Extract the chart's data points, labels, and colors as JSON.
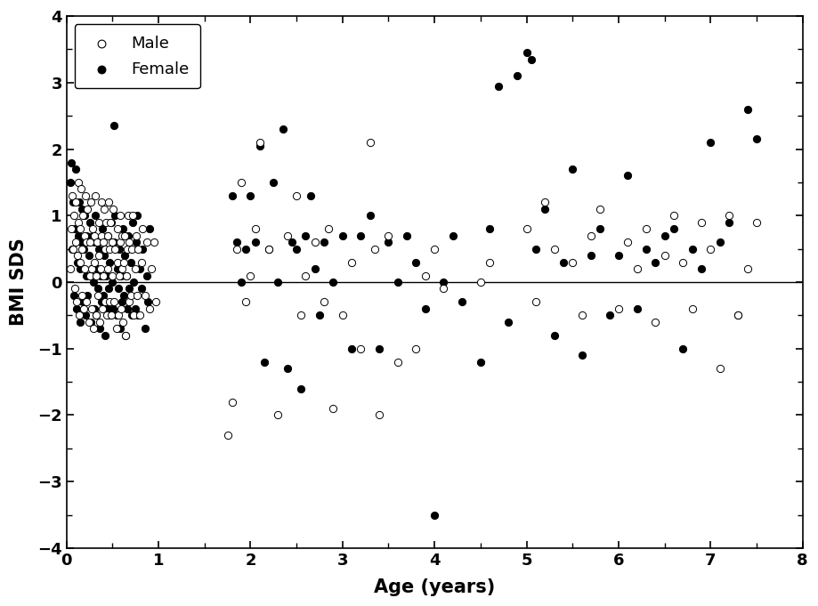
{
  "title": "",
  "xlabel": "Age (years)",
  "ylabel": "BMI SDS",
  "xlim": [
    0,
    8
  ],
  "ylim": [
    -4,
    4
  ],
  "xticks": [
    0,
    1,
    2,
    3,
    4,
    5,
    6,
    7,
    8
  ],
  "yticks": [
    -4,
    -3,
    -2,
    -1,
    0,
    1,
    2,
    3,
    4
  ],
  "hline_y": 0,
  "male_x": [
    0.04,
    0.05,
    0.06,
    0.07,
    0.08,
    0.09,
    0.1,
    0.1,
    0.11,
    0.12,
    0.13,
    0.13,
    0.14,
    0.15,
    0.15,
    0.16,
    0.17,
    0.17,
    0.18,
    0.19,
    0.2,
    0.2,
    0.21,
    0.22,
    0.22,
    0.23,
    0.24,
    0.25,
    0.25,
    0.26,
    0.27,
    0.27,
    0.28,
    0.29,
    0.3,
    0.3,
    0.31,
    0.32,
    0.32,
    0.33,
    0.34,
    0.35,
    0.35,
    0.36,
    0.37,
    0.38,
    0.38,
    0.39,
    0.4,
    0.4,
    0.41,
    0.42,
    0.42,
    0.43,
    0.44,
    0.45,
    0.45,
    0.46,
    0.47,
    0.47,
    0.48,
    0.49,
    0.5,
    0.5,
    0.51,
    0.52,
    0.53,
    0.54,
    0.55,
    0.55,
    0.56,
    0.57,
    0.58,
    0.58,
    0.59,
    0.6,
    0.6,
    0.61,
    0.62,
    0.63,
    0.64,
    0.65,
    0.66,
    0.67,
    0.68,
    0.68,
    0.7,
    0.71,
    0.72,
    0.73,
    0.75,
    0.76,
    0.77,
    0.78,
    0.8,
    0.82,
    0.83,
    0.85,
    0.87,
    0.9,
    0.92,
    0.95,
    0.97,
    1.75,
    1.8,
    1.85,
    1.9,
    1.95,
    2.0,
    2.05,
    2.1,
    2.2,
    2.3,
    2.4,
    2.5,
    2.55,
    2.6,
    2.7,
    2.8,
    2.85,
    2.9,
    3.0,
    3.1,
    3.2,
    3.3,
    3.35,
    3.4,
    3.5,
    3.6,
    3.8,
    3.9,
    4.0,
    4.1,
    4.5,
    4.6,
    5.0,
    5.1,
    5.2,
    5.3,
    5.5,
    5.6,
    5.7,
    5.8,
    6.0,
    6.1,
    6.2,
    6.3,
    6.4,
    6.5,
    6.6,
    6.7,
    6.8,
    6.9,
    7.0,
    7.1,
    7.2,
    7.3,
    7.4,
    7.5
  ],
  "male_y": [
    0.2,
    0.8,
    1.3,
    0.5,
    1.0,
    -0.1,
    0.6,
    1.2,
    -0.3,
    0.4,
    0.9,
    1.5,
    -0.5,
    0.3,
    0.8,
    1.4,
    -0.2,
    0.5,
    1.0,
    -0.4,
    0.2,
    0.7,
    1.3,
    -0.3,
    0.6,
    1.1,
    -0.6,
    0.1,
    0.6,
    1.2,
    -0.4,
    0.2,
    0.8,
    -0.7,
    0.3,
    0.7,
    1.3,
    -0.5,
    0.1,
    0.6,
    -0.2,
    0.4,
    0.9,
    -0.6,
    0.2,
    0.7,
    1.2,
    -0.4,
    0.1,
    0.6,
    1.1,
    -0.3,
    0.5,
    0.9,
    -0.5,
    0.2,
    0.7,
    1.2,
    -0.3,
    0.5,
    0.9,
    -0.5,
    0.1,
    0.6,
    1.1,
    -0.3,
    0.5,
    -0.7,
    0.3,
    0.8,
    -0.5,
    0.1,
    0.6,
    1.0,
    -0.4,
    0.2,
    0.7,
    -0.6,
    0.3,
    0.7,
    -0.8,
    0.1,
    0.5,
    1.0,
    -0.3,
    0.6,
    -0.2,
    0.5,
    1.0,
    -0.5,
    0.2,
    0.7,
    -0.2,
    0.5,
    -0.5,
    0.3,
    0.8,
    -0.2,
    0.6,
    -0.4,
    0.2,
    0.6,
    -0.3,
    -2.3,
    -1.8,
    0.5,
    1.5,
    -0.3,
    0.1,
    0.8,
    2.1,
    0.5,
    -2.0,
    0.7,
    1.3,
    -0.5,
    0.1,
    0.6,
    -0.3,
    0.8,
    -1.9,
    -0.5,
    0.3,
    -1.0,
    2.1,
    0.5,
    -2.0,
    0.7,
    -1.2,
    -1.0,
    0.1,
    0.5,
    -0.1,
    0.0,
    0.3,
    0.8,
    -0.3,
    1.2,
    0.5,
    0.3,
    -0.5,
    0.7,
    1.1,
    -0.4,
    0.6,
    0.2,
    0.8,
    -0.6,
    0.4,
    1.0,
    0.3,
    -0.4,
    0.9,
    0.5,
    -1.3,
    1.0,
    -0.5,
    0.2,
    0.9
  ],
  "female_x": [
    0.04,
    0.05,
    0.06,
    0.07,
    0.08,
    0.09,
    0.1,
    0.11,
    0.12,
    0.13,
    0.14,
    0.15,
    0.15,
    0.16,
    0.17,
    0.18,
    0.19,
    0.2,
    0.21,
    0.22,
    0.22,
    0.23,
    0.24,
    0.25,
    0.26,
    0.27,
    0.28,
    0.29,
    0.3,
    0.3,
    0.31,
    0.32,
    0.33,
    0.34,
    0.35,
    0.36,
    0.37,
    0.38,
    0.39,
    0.4,
    0.41,
    0.42,
    0.43,
    0.44,
    0.45,
    0.46,
    0.47,
    0.48,
    0.49,
    0.5,
    0.51,
    0.52,
    0.53,
    0.54,
    0.55,
    0.56,
    0.57,
    0.58,
    0.59,
    0.6,
    0.61,
    0.62,
    0.63,
    0.64,
    0.65,
    0.66,
    0.67,
    0.68,
    0.7,
    0.71,
    0.72,
    0.73,
    0.75,
    0.76,
    0.77,
    0.78,
    0.8,
    0.82,
    0.83,
    0.85,
    0.87,
    0.88,
    0.9,
    0.52,
    1.8,
    1.85,
    1.9,
    1.95,
    2.0,
    2.05,
    2.1,
    2.15,
    2.2,
    2.25,
    2.3,
    2.35,
    2.4,
    2.45,
    2.5,
    2.55,
    2.6,
    2.65,
    2.7,
    2.75,
    2.8,
    2.9,
    3.0,
    3.1,
    3.2,
    3.3,
    3.4,
    3.5,
    3.6,
    3.7,
    3.8,
    3.9,
    4.0,
    4.1,
    4.2,
    4.3,
    4.5,
    4.6,
    4.7,
    4.8,
    4.9,
    5.0,
    5.05,
    5.1,
    5.2,
    5.3,
    5.4,
    5.5,
    5.6,
    5.7,
    5.8,
    5.9,
    6.0,
    6.1,
    6.2,
    6.3,
    6.4,
    6.5,
    6.6,
    6.7,
    6.8,
    6.9,
    7.0,
    7.1,
    7.2,
    7.3,
    7.4,
    7.5
  ],
  "female_y": [
    1.5,
    1.8,
    0.5,
    1.2,
    -0.2,
    0.8,
    1.7,
    -0.4,
    0.3,
    0.7,
    1.2,
    -0.6,
    0.2,
    0.6,
    1.1,
    -0.3,
    0.5,
    1.0,
    -0.5,
    0.1,
    0.7,
    -0.2,
    0.4,
    0.9,
    -0.6,
    0.2,
    0.7,
    0.0,
    -0.4,
    0.6,
    1.0,
    -0.5,
    0.2,
    -0.1,
    0.5,
    -0.7,
    0.1,
    -0.3,
    0.8,
    -0.2,
    0.4,
    -0.8,
    0.1,
    -0.4,
    0.7,
    -0.1,
    0.3,
    -0.5,
    0.9,
    0.0,
    -0.4,
    0.6,
    1.0,
    -0.5,
    0.2,
    -0.1,
    0.5,
    -0.7,
    0.1,
    -0.3,
    0.8,
    -0.2,
    0.4,
    -0.8,
    0.1,
    -0.4,
    0.7,
    -0.1,
    0.3,
    -0.5,
    0.9,
    0.0,
    -0.4,
    0.6,
    1.0,
    -0.5,
    0.2,
    -0.1,
    0.5,
    -0.7,
    0.1,
    -0.3,
    0.8,
    2.35,
    1.3,
    0.6,
    0.0,
    0.5,
    1.3,
    0.6,
    2.05,
    -1.2,
    0.5,
    1.5,
    0.0,
    2.3,
    -1.3,
    0.6,
    0.5,
    -1.6,
    0.7,
    1.3,
    0.2,
    -0.5,
    0.6,
    0.0,
    0.7,
    -1.0,
    0.7,
    1.0,
    -1.0,
    0.6,
    0.0,
    0.7,
    0.3,
    -0.4,
    -3.5,
    0.0,
    0.7,
    -0.3,
    -1.2,
    0.8,
    2.95,
    -0.6,
    3.1,
    3.45,
    3.35,
    0.5,
    1.1,
    -0.8,
    0.3,
    1.7,
    -1.1,
    0.4,
    0.8,
    -0.5,
    0.4,
    1.6,
    -0.4,
    0.5,
    0.3,
    0.7,
    0.8,
    -1.0,
    0.5,
    0.2,
    2.1,
    0.6,
    0.9,
    -0.5,
    2.6,
    2.15
  ]
}
